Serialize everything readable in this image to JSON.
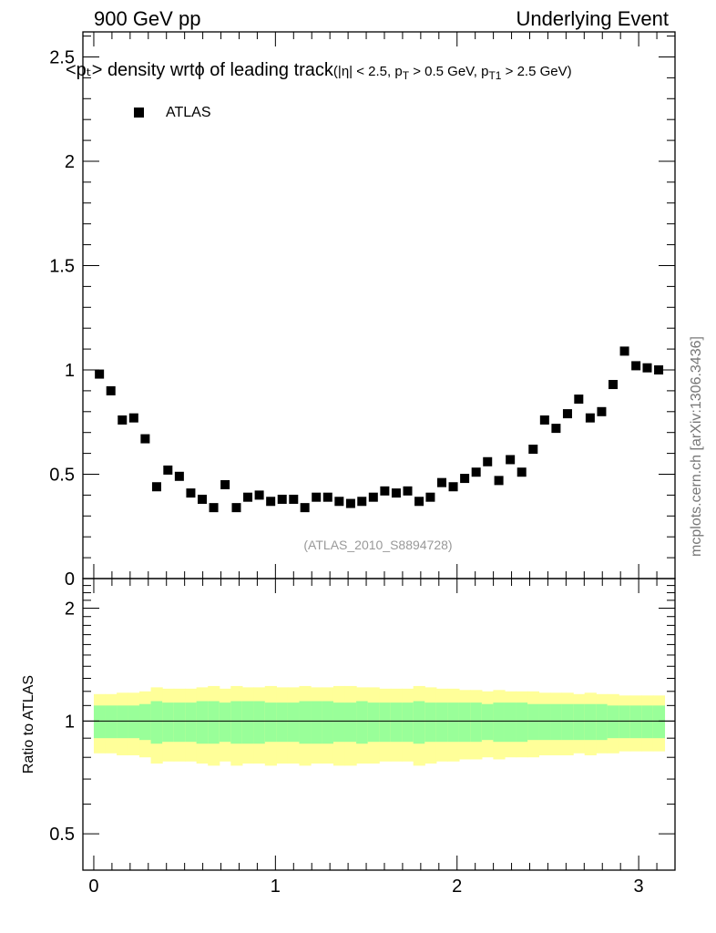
{
  "header": {
    "left": "900 GeV pp",
    "right": "Underlying Event"
  },
  "title": {
    "main": "<pₜ> density wrtϕ of leading track",
    "cuts_pre": "(|η| < 2.5, p",
    "cuts_sub1": "T",
    "cuts_mid": " > 0.5 GeV, p",
    "cuts_sub2": "T1",
    "cuts_post": " > 2.5 GeV)"
  },
  "legend": {
    "label": "ATLAS"
  },
  "analysis_tag": "(ATLAS_2010_S8894728)",
  "watermark": "mcplots.cern.ch [arXiv:1306.3436]",
  "ratio_ylabel": "Ratio to ATLAS",
  "chart_data": {
    "type": "scatter",
    "series": [
      {
        "name": "ATLAS",
        "marker": "square",
        "color": "#000000",
        "x": [
          0.031,
          0.094,
          0.157,
          0.22,
          0.283,
          0.346,
          0.408,
          0.471,
          0.534,
          0.597,
          0.66,
          0.723,
          0.785,
          0.848,
          0.911,
          0.974,
          1.037,
          1.1,
          1.162,
          1.225,
          1.288,
          1.351,
          1.414,
          1.476,
          1.539,
          1.602,
          1.665,
          1.728,
          1.791,
          1.853,
          1.916,
          1.979,
          2.042,
          2.105,
          2.168,
          2.23,
          2.293,
          2.356,
          2.419,
          2.482,
          2.545,
          2.608,
          2.67,
          2.733,
          2.796,
          2.859,
          2.922,
          2.985,
          3.047,
          3.11
        ],
        "y": [
          0.98,
          0.9,
          0.76,
          0.77,
          0.67,
          0.44,
          0.52,
          0.49,
          0.41,
          0.38,
          0.34,
          0.45,
          0.34,
          0.39,
          0.4,
          0.37,
          0.38,
          0.38,
          0.34,
          0.39,
          0.39,
          0.37,
          0.36,
          0.37,
          0.39,
          0.42,
          0.41,
          0.42,
          0.37,
          0.39,
          0.46,
          0.44,
          0.48,
          0.51,
          0.56,
          0.47,
          0.57,
          0.51,
          0.62,
          0.76,
          0.72,
          0.79,
          0.86,
          0.77,
          0.8,
          0.93,
          1.09,
          1.02,
          1.01,
          1.0
        ]
      }
    ],
    "xlim": [
      -0.06,
      3.2
    ],
    "ylim": [
      0,
      2.62
    ],
    "yticks": [
      0,
      0.5,
      1,
      1.5,
      2,
      2.5
    ],
    "ytick_labels": [
      "0",
      "0.5",
      "1",
      "1.5",
      "2",
      "2.5"
    ],
    "xticks": [
      0,
      1,
      2,
      3
    ],
    "xtick_labels": [
      "0",
      "1",
      "2",
      "3"
    ],
    "ratio": {
      "ylim": [
        0.4,
        2.4
      ],
      "log": true,
      "yticks": [
        0.5,
        1,
        2
      ],
      "ytick_labels": [
        "0.5",
        "1",
        "2"
      ],
      "bins": [
        0,
        0.063,
        0.126,
        0.188,
        0.251,
        0.314,
        0.377,
        0.44,
        0.503,
        0.565,
        0.628,
        0.691,
        0.754,
        0.817,
        0.88,
        0.942,
        1.005,
        1.068,
        1.131,
        1.194,
        1.257,
        1.319,
        1.382,
        1.445,
        1.508,
        1.571,
        1.634,
        1.696,
        1.759,
        1.822,
        1.885,
        1.948,
        2.011,
        2.073,
        2.136,
        2.199,
        2.262,
        2.325,
        2.388,
        2.45,
        2.513,
        2.576,
        2.639,
        2.702,
        2.765,
        2.827,
        2.89,
        2.953,
        3.016,
        3.079,
        3.142
      ],
      "band_green": [
        0.1,
        0.1,
        0.1,
        0.1,
        0.11,
        0.13,
        0.12,
        0.12,
        0.12,
        0.13,
        0.13,
        0.12,
        0.13,
        0.13,
        0.13,
        0.12,
        0.12,
        0.12,
        0.13,
        0.13,
        0.13,
        0.12,
        0.12,
        0.13,
        0.12,
        0.12,
        0.12,
        0.12,
        0.13,
        0.12,
        0.12,
        0.12,
        0.12,
        0.12,
        0.11,
        0.12,
        0.12,
        0.12,
        0.11,
        0.11,
        0.11,
        0.11,
        0.11,
        0.11,
        0.11,
        0.1,
        0.1,
        0.1,
        0.1,
        0.1
      ],
      "band_yellow": [
        0.18,
        0.18,
        0.19,
        0.19,
        0.2,
        0.23,
        0.22,
        0.22,
        0.22,
        0.23,
        0.24,
        0.22,
        0.24,
        0.23,
        0.23,
        0.24,
        0.23,
        0.23,
        0.24,
        0.23,
        0.23,
        0.24,
        0.24,
        0.23,
        0.23,
        0.22,
        0.22,
        0.22,
        0.24,
        0.23,
        0.22,
        0.22,
        0.21,
        0.21,
        0.2,
        0.21,
        0.2,
        0.2,
        0.2,
        0.19,
        0.19,
        0.19,
        0.18,
        0.19,
        0.18,
        0.18,
        0.17,
        0.17,
        0.17,
        0.17
      ],
      "colors": {
        "green": "#99ff99",
        "yellow": "#ffff99",
        "line": "#000000"
      }
    }
  }
}
